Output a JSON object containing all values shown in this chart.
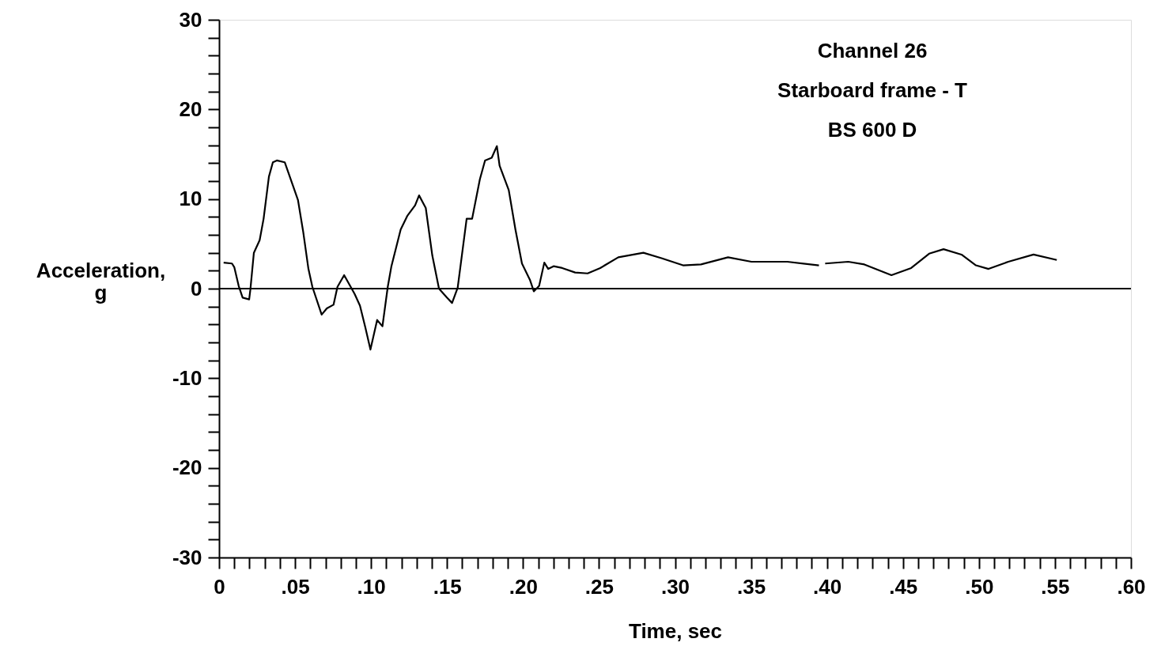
{
  "chart_data": {
    "type": "line",
    "xlabel": "Time, sec",
    "ylabel": "Acceleration, g",
    "annotations": [
      "Channel 26",
      "Starboard frame - T",
      "BS 600 D"
    ],
    "x": [
      0.003,
      0.0085,
      0.01,
      0.0129,
      0.0155,
      0.0198,
      0.0206,
      0.0229,
      0.0267,
      0.0293,
      0.0328,
      0.0354,
      0.038,
      0.0432,
      0.0484,
      0.0519,
      0.0553,
      0.0588,
      0.0614,
      0.0675,
      0.0709,
      0.0753,
      0.0779,
      0.0823,
      0.0866,
      0.0892,
      0.0927,
      0.0962,
      0.0996,
      0.104,
      0.1075,
      0.111,
      0.1134,
      0.1195,
      0.1238,
      0.129,
      0.1316,
      0.136,
      0.1403,
      0.1447,
      0.1499,
      0.1533,
      0.157,
      0.1629,
      0.1665,
      0.1716,
      0.175,
      0.1794,
      0.1828,
      0.1846,
      0.1906,
      0.195,
      0.1993,
      0.2045,
      0.2071,
      0.2106,
      0.214,
      0.2166,
      0.2201,
      0.2258,
      0.2343,
      0.2425,
      0.2508,
      0.2627,
      0.2792,
      0.2911,
      0.3053,
      0.3171,
      0.3349,
      0.3503,
      0.3739,
      0.3947,
      0.397,
      0.3988,
      0.414,
      0.4246,
      0.4424,
      0.4554,
      0.4672,
      0.4767,
      0.4885,
      0.498,
      0.5063,
      0.5193,
      0.5359,
      0.5512
    ],
    "series": [
      {
        "color": "#000000",
        "values": [
          2.9,
          2.8,
          2.4,
          0.3,
          -1.0,
          -1.2,
          -0.1,
          4.0,
          5.4,
          7.8,
          12.5,
          14.1,
          14.3,
          14.1,
          11.6,
          9.9,
          6.4,
          2.2,
          0.2,
          -2.9,
          -2.2,
          -1.8,
          0.2,
          1.5,
          0.2,
          -0.6,
          -1.9,
          -4.3,
          -6.8,
          -3.5,
          -4.2,
          0.2,
          2.5,
          6.6,
          8.1,
          9.3,
          10.4,
          9.0,
          3.7,
          0.0,
          -1.0,
          -1.6,
          0.1,
          7.8,
          7.8,
          12.2,
          14.3,
          14.6,
          15.9,
          13.7,
          11.0,
          6.6,
          2.8,
          1.0,
          -0.3,
          0.3,
          2.9,
          2.2,
          2.5,
          2.3,
          1.8,
          1.7,
          2.3,
          3.5,
          4.0,
          3.4,
          2.6,
          2.7,
          3.5,
          3.0,
          3.0,
          2.6,
          null,
          2.8,
          3.0,
          2.7,
          1.5,
          2.3,
          3.9,
          4.4,
          3.8,
          2.6,
          2.2,
          3.0,
          3.8,
          3.2
        ]
      }
    ],
    "xlim": [
      0,
      0.6
    ],
    "ylim": [
      -30,
      30
    ],
    "xticks": [
      0,
      {
        "value": 0.01,
        "label": null
      },
      {
        "value": 0.02,
        "label": null
      },
      {
        "value": 0.03,
        "label": null
      },
      {
        "value": 0.04,
        "label": null
      },
      {
        "value": 0.05,
        "label": ".05"
      },
      {
        "value": 0.06,
        "label": null
      },
      {
        "value": 0.07,
        "label": null
      },
      {
        "value": 0.08,
        "label": null
      },
      {
        "value": 0.09,
        "label": null
      },
      {
        "value": 0.1,
        "label": ".10"
      },
      {
        "value": 0.11,
        "label": null
      },
      {
        "value": 0.12,
        "label": null
      },
      {
        "value": 0.13,
        "label": null
      },
      {
        "value": 0.14,
        "label": null
      },
      {
        "value": 0.15,
        "label": ".15"
      },
      {
        "value": 0.16,
        "label": null
      },
      {
        "value": 0.17,
        "label": null
      },
      {
        "value": 0.18,
        "label": null
      },
      {
        "value": 0.19,
        "label": null
      },
      {
        "value": 0.2,
        "label": ".20"
      },
      {
        "value": 0.21,
        "label": null
      },
      {
        "value": 0.22,
        "label": null
      },
      {
        "value": 0.23,
        "label": null
      },
      {
        "value": 0.24,
        "label": null
      },
      {
        "value": 0.25,
        "label": ".25"
      },
      {
        "value": 0.26,
        "label": null
      },
      {
        "value": 0.27,
        "label": null
      },
      {
        "value": 0.28,
        "label": null
      },
      {
        "value": 0.29,
        "label": null
      },
      {
        "value": 0.3,
        "label": ".30"
      },
      {
        "value": 0.31,
        "label": null
      },
      {
        "value": 0.32,
        "label": null
      },
      {
        "value": 0.33,
        "label": null
      },
      {
        "value": 0.34,
        "label": null
      },
      {
        "value": 0.35,
        "label": ".35"
      },
      {
        "value": 0.36,
        "label": null
      },
      {
        "value": 0.37,
        "label": null
      },
      {
        "value": 0.38,
        "label": null
      },
      {
        "value": 0.39,
        "label": null
      },
      {
        "value": 0.4,
        "label": ".40"
      },
      {
        "value": 0.41,
        "label": null
      },
      {
        "value": 0.42,
        "label": null
      },
      {
        "value": 0.43,
        "label": null
      },
      {
        "value": 0.44,
        "label": null
      },
      {
        "value": 0.45,
        "label": ".45"
      },
      {
        "value": 0.46,
        "label": null
      },
      {
        "value": 0.47,
        "label": null
      },
      {
        "value": 0.48,
        "label": null
      },
      {
        "value": 0.49,
        "label": null
      },
      {
        "value": 0.5,
        "label": ".50"
      },
      {
        "value": 0.51,
        "label": null
      },
      {
        "value": 0.52,
        "label": null
      },
      {
        "value": 0.53,
        "label": null
      },
      {
        "value": 0.54,
        "label": null
      },
      {
        "value": 0.55,
        "label": ".55"
      },
      {
        "value": 0.56,
        "label": null
      },
      {
        "value": 0.57,
        "label": null
      },
      {
        "value": 0.58,
        "label": null
      },
      {
        "value": 0.59,
        "label": null
      },
      {
        "value": 0.6,
        "label": ".60"
      }
    ],
    "yticks": [
      -30,
      {
        "value": -28,
        "label": null
      },
      {
        "value": -26,
        "label": null
      },
      {
        "value": -24,
        "label": null
      },
      {
        "value": -22,
        "label": null
      },
      -20,
      {
        "value": -18,
        "label": null
      },
      {
        "value": -16,
        "label": null
      },
      {
        "value": -14,
        "label": null
      },
      {
        "value": -12,
        "label": null
      },
      -10,
      {
        "value": -8,
        "label": null
      },
      {
        "value": -6,
        "label": null
      },
      {
        "value": -4,
        "label": null
      },
      {
        "value": -2,
        "label": null
      },
      0,
      {
        "value": 2,
        "label": null
      },
      {
        "value": 4,
        "label": null
      },
      {
        "value": 6,
        "label": null
      },
      {
        "value": 8,
        "label": null
      },
      10,
      {
        "value": 12,
        "label": null
      },
      {
        "value": 14,
        "label": null
      },
      {
        "value": 16,
        "label": null
      },
      {
        "value": 18,
        "label": null
      },
      20,
      {
        "value": 22,
        "label": null
      },
      {
        "value": 24,
        "label": null
      },
      {
        "value": 26,
        "label": null
      },
      {
        "value": 28,
        "label": null
      },
      30
    ],
    "ref_lines": [
      {
        "axis": "y",
        "value": 0,
        "color": "#000000"
      }
    ],
    "grid": false,
    "marker": "none",
    "line_style": "solid"
  }
}
